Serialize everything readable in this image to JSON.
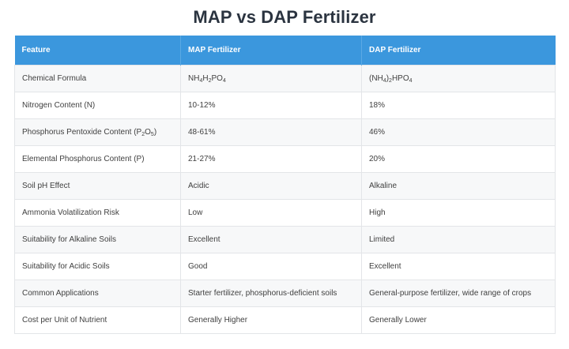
{
  "title": "MAP vs DAP Fertilizer",
  "table": {
    "headers": [
      "Feature",
      "MAP Fertilizer",
      "DAP Fertilizer"
    ],
    "rows": [
      [
        "Chemical Formula",
        "NH4H2PO4",
        "(NH4)2HPO4"
      ],
      [
        "Nitrogen Content (N)",
        "10-12%",
        "18%"
      ],
      [
        "Phosphorus Pentoxide Content (P2O5)",
        "48-61%",
        "46%"
      ],
      [
        "Elemental Phosphorus Content (P)",
        "21-27%",
        "20%"
      ],
      [
        "Soil pH Effect",
        "Acidic",
        "Alkaline"
      ],
      [
        "Ammonia Volatilization Risk",
        "Low",
        "High"
      ],
      [
        "Suitability for Alkaline Soils",
        "Excellent",
        "Limited"
      ],
      [
        "Suitability for Acidic Soils",
        "Good",
        "Excellent"
      ],
      [
        "Common Applications",
        "Starter fertilizer, phosphorus-deficient soils",
        "General-purpose fertilizer, wide range of crops"
      ],
      [
        "Cost per Unit of Nutrient",
        "Generally Higher",
        "Generally Lower"
      ]
    ]
  },
  "colors": {
    "header_bg": "#3b97dd",
    "header_text": "#ffffff",
    "title_text": "#2b3440"
  }
}
